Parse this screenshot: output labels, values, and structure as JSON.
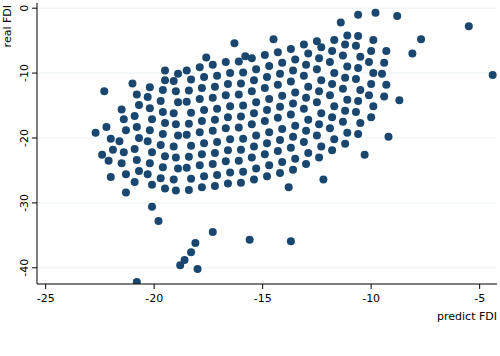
{
  "chart_data": {
    "type": "scatter",
    "x_label": "predict FDI",
    "y_label": "real FDI",
    "color": "#1a476f",
    "marker": "circle",
    "grid": true,
    "xlim": [
      -25.4,
      -4.2
    ],
    "ylim": [
      -42.5,
      0.8
    ],
    "xticks": [
      -25,
      -20,
      -15,
      -10,
      -5
    ],
    "yticks": [
      -40,
      -30,
      -20,
      -10,
      0
    ],
    "x": [
      -22.1,
      -21.9,
      -22.0,
      -22.2,
      -21.3,
      -21.5,
      -21.4,
      -21.6,
      -21.3,
      -21.4,
      -21.5,
      -20.9,
      -20.7,
      -20.8,
      -20.9,
      -20.7,
      -20.8,
      -20.9,
      -20.7,
      -20.8,
      -20.1,
      -20.3,
      -20.2,
      -20.1,
      -20.3,
      -20.2,
      -20.1,
      -20.2,
      -20.3,
      -20.2,
      -19.5,
      -19.7,
      -19.6,
      -19.5,
      -19.7,
      -19.6,
      -19.5,
      -19.6,
      -19.7,
      -19.6,
      -19.5,
      -19.0,
      -19.1,
      -18.9,
      -19.0,
      -19.1,
      -18.9,
      -19.0,
      -19.1,
      -18.9,
      -19.0,
      -19.1,
      -18.9,
      -18.4,
      -18.3,
      -18.5,
      -18.4,
      -18.3,
      -18.5,
      -18.4,
      -18.3,
      -18.5,
      -18.4,
      -18.3,
      -18.5,
      -17.8,
      -17.7,
      -17.9,
      -17.8,
      -17.7,
      -17.9,
      -17.8,
      -17.7,
      -17.9,
      -17.8,
      -17.7,
      -17.9,
      -17.2,
      -17.1,
      -17.3,
      -17.2,
      -17.1,
      -17.3,
      -17.2,
      -17.1,
      -17.3,
      -17.2,
      -17.1,
      -17.3,
      -16.6,
      -16.5,
      -16.7,
      -16.6,
      -16.5,
      -16.7,
      -16.6,
      -16.5,
      -16.7,
      -16.6,
      -16.5,
      -16.7,
      -16.0,
      -15.9,
      -16.1,
      -16.0,
      -15.9,
      -16.1,
      -16.0,
      -15.9,
      -16.1,
      -16.0,
      -15.9,
      -16.1,
      -15.8,
      -15.4,
      -15.3,
      -15.5,
      -15.4,
      -15.3,
      -15.5,
      -15.4,
      -15.3,
      -15.5,
      -15.4,
      -15.3,
      -15.5,
      -14.8,
      -14.7,
      -14.9,
      -14.8,
      -14.7,
      -14.9,
      -14.8,
      -14.7,
      -14.9,
      -14.8,
      -14.7,
      -14.9,
      -14.2,
      -14.1,
      -14.3,
      -14.2,
      -14.1,
      -14.3,
      -14.2,
      -14.1,
      -14.3,
      -14.2,
      -14.1,
      -14.3,
      -13.6,
      -13.5,
      -13.7,
      -13.6,
      -13.5,
      -13.7,
      -13.6,
      -13.5,
      -13.7,
      -13.6,
      -13.5,
      -13.7,
      -13.0,
      -12.9,
      -13.1,
      -13.0,
      -12.9,
      -13.1,
      -13.0,
      -12.9,
      -13.1,
      -13.0,
      -12.9,
      -13.1,
      -12.4,
      -12.3,
      -12.5,
      -12.4,
      -12.3,
      -12.5,
      -12.4,
      -12.3,
      -12.5,
      -12.4,
      -12.3,
      -12.5,
      -11.8,
      -11.7,
      -11.9,
      -11.8,
      -11.7,
      -11.9,
      -11.8,
      -11.7,
      -11.9,
      -11.8,
      -11.7,
      -11.2,
      -11.1,
      -11.3,
      -11.2,
      -11.1,
      -11.3,
      -11.2,
      -11.1,
      -11.3,
      -11.2,
      -11.1,
      -10.6,
      -10.5,
      -10.7,
      -10.6,
      -10.5,
      -10.7,
      -10.6,
      -10.5,
      -10.7,
      -10.6,
      -10.0,
      -9.9,
      -10.1,
      -10.0,
      -9.9,
      -10.1,
      -10.0,
      -9.9,
      -9.4,
      -9.3,
      -9.5,
      -9.4,
      -9.3,
      -4.4,
      -5.5,
      -7.7,
      -8.1,
      -8.8,
      -9.8,
      -10.6,
      -11.4,
      -8.7,
      -9.2,
      -10.3,
      -12.2,
      -13.8,
      -20.8,
      -18.8,
      -18.0,
      -18.3,
      -18.1,
      -18.6,
      -15.6,
      -13.7,
      -17.3,
      -19.8,
      -20.1,
      -22.7,
      -22.4,
      -22.0,
      -21.3,
      -22.3,
      -21.0,
      -19.5,
      -17.6,
      -16.3,
      -14.5
    ],
    "values": [
      -23.5,
      -21.8,
      -20.1,
      -18.3,
      -25.6,
      -23.9,
      -22.2,
      -20.5,
      -18.8,
      -17.1,
      -15.6,
      -26.8,
      -25.1,
      -23.4,
      -21.7,
      -20.0,
      -18.3,
      -16.6,
      -14.9,
      -13.3,
      -27.2,
      -25.6,
      -23.9,
      -22.2,
      -20.5,
      -18.8,
      -17.1,
      -15.4,
      -13.7,
      -12.2,
      -27.8,
      -26.2,
      -24.5,
      -22.8,
      -21.1,
      -19.4,
      -17.7,
      -16.0,
      -14.3,
      -12.6,
      -11.1,
      -28.1,
      -26.4,
      -24.7,
      -23.0,
      -21.3,
      -19.6,
      -17.9,
      -16.2,
      -14.5,
      -12.8,
      -11.2,
      -10.1,
      -28.0,
      -26.3,
      -24.6,
      -22.9,
      -21.2,
      -19.5,
      -17.8,
      -16.1,
      -14.4,
      -12.7,
      -11.0,
      -9.6,
      -27.6,
      -25.9,
      -24.2,
      -22.5,
      -20.8,
      -19.1,
      -17.4,
      -15.7,
      -14.0,
      -12.3,
      -10.6,
      -9.1,
      -27.4,
      -25.7,
      -24.0,
      -22.3,
      -20.6,
      -18.9,
      -17.2,
      -15.5,
      -13.8,
      -12.1,
      -10.4,
      -8.7,
      -27.0,
      -25.3,
      -23.6,
      -21.9,
      -20.2,
      -18.5,
      -16.8,
      -15.1,
      -13.4,
      -11.7,
      -10.0,
      -8.3,
      -26.9,
      -25.2,
      -23.5,
      -21.8,
      -20.1,
      -18.4,
      -16.7,
      -15.0,
      -13.3,
      -11.6,
      -9.9,
      -8.2,
      -7.4,
      -26.4,
      -24.7,
      -23.0,
      -21.3,
      -19.6,
      -17.9,
      -16.2,
      -14.5,
      -12.8,
      -11.1,
      -9.4,
      -7.7,
      -25.9,
      -24.2,
      -22.5,
      -20.8,
      -19.1,
      -17.4,
      -15.7,
      -14.0,
      -12.3,
      -10.6,
      -8.9,
      -7.2,
      -25.4,
      -23.7,
      -22.0,
      -20.3,
      -18.6,
      -16.9,
      -15.2,
      -13.5,
      -11.8,
      -10.1,
      -8.4,
      -6.8,
      -24.9,
      -23.2,
      -21.5,
      -19.8,
      -18.1,
      -16.4,
      -14.7,
      -13.0,
      -11.3,
      -9.6,
      -7.9,
      -6.3,
      -24.0,
      -22.3,
      -20.6,
      -18.9,
      -17.2,
      -15.5,
      -13.8,
      -12.1,
      -10.4,
      -8.7,
      -7.0,
      -5.6,
      -23.0,
      -21.3,
      -19.6,
      -17.9,
      -16.2,
      -14.5,
      -12.8,
      -11.1,
      -9.4,
      -7.7,
      -6.0,
      -5.1,
      -21.9,
      -20.2,
      -18.5,
      -16.8,
      -15.1,
      -13.4,
      -11.7,
      -10.0,
      -8.3,
      -6.6,
      -4.9,
      -20.9,
      -19.2,
      -17.5,
      -15.8,
      -14.1,
      -12.4,
      -10.7,
      -9.0,
      -7.3,
      -5.6,
      -4.2,
      -19.4,
      -17.7,
      -16.0,
      -14.3,
      -12.6,
      -10.9,
      -9.2,
      -7.5,
      -5.8,
      -4.3,
      -16.8,
      -15.1,
      -13.4,
      -11.7,
      -10.0,
      -8.3,
      -6.6,
      -4.9,
      -13.6,
      -11.8,
      -10.1,
      -8.4,
      -6.6,
      -10.3,
      -2.8,
      -4.8,
      -7.0,
      -1.2,
      -0.7,
      -1.0,
      -2.2,
      -14.2,
      -19.8,
      -22.6,
      -26.4,
      -27.6,
      -42.2,
      -39.6,
      -40.2,
      -37.6,
      -36.2,
      -38.8,
      -35.7,
      -35.9,
      -34.5,
      -32.8,
      -30.6,
      -19.2,
      -22.6,
      -26.0,
      -28.4,
      -12.8,
      -11.6,
      -9.6,
      -7.6,
      -5.4,
      -4.8
    ]
  }
}
